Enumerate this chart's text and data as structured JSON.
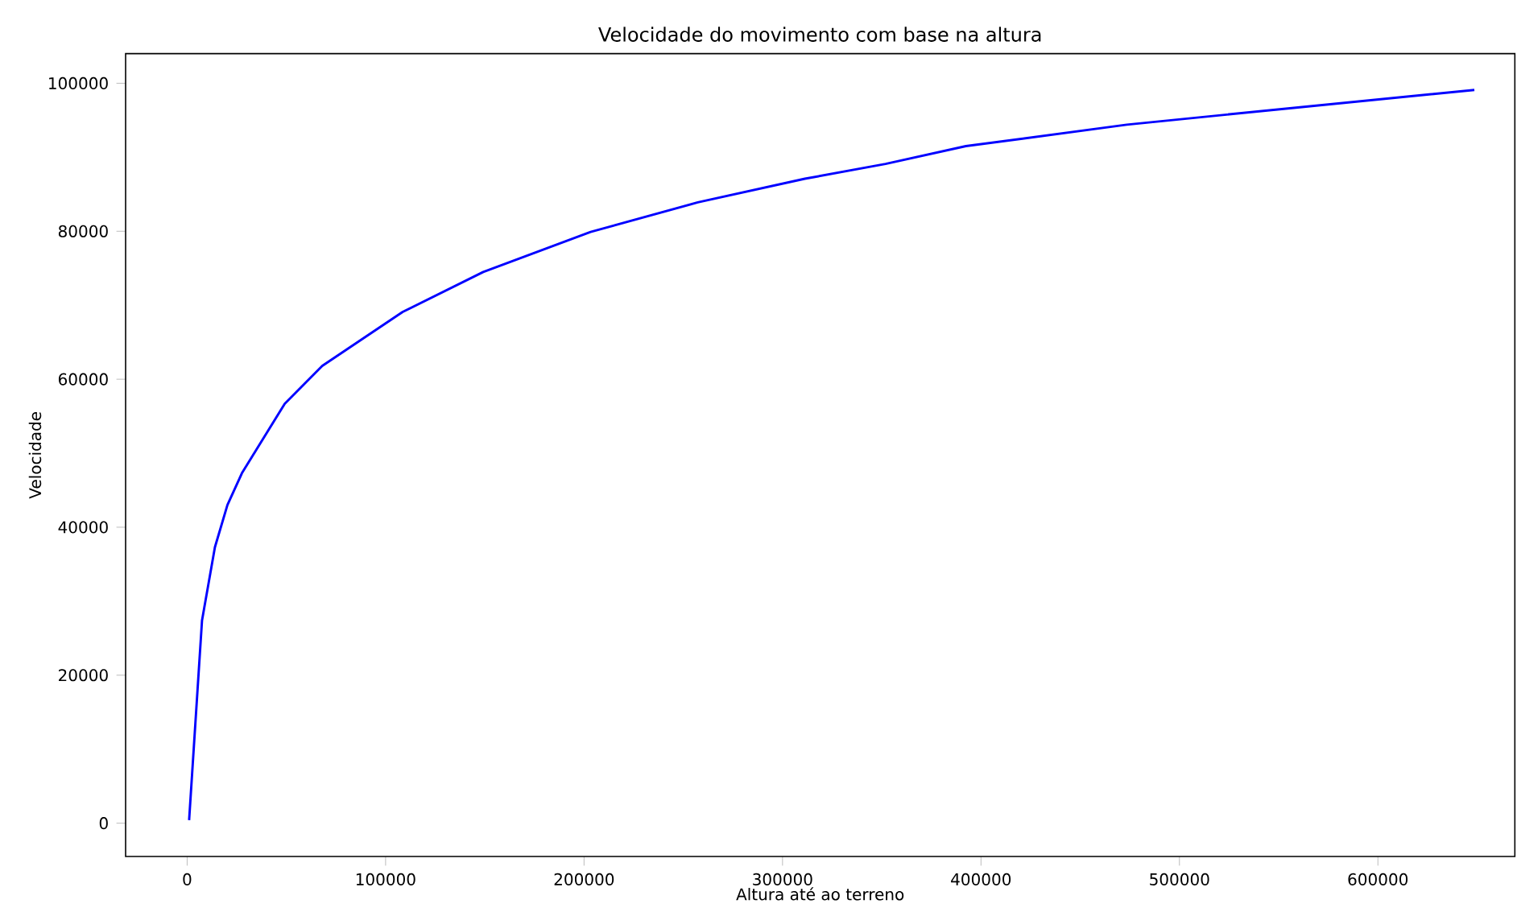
{
  "chart_data": {
    "type": "line",
    "title": "Velocidade do movimento com base na altura",
    "xlabel": "Altura até ao terreno",
    "ylabel": "Velocidade",
    "x": [
      1000,
      7500,
      14000,
      20300,
      27600,
      38400,
      49200,
      68100,
      108600,
      149200,
      203300,
      257300,
      311300,
      351900,
      392400,
      473500,
      554600,
      648600
    ],
    "series": [
      {
        "color": "#0000ff",
        "values": [
          400,
          27400,
          37300,
          43000,
          47300,
          52000,
          56700,
          61800,
          69100,
          74500,
          79900,
          83900,
          87100,
          89100,
          91500,
          94400,
          96600,
          99100
        ]
      }
    ],
    "xlim": [
      -31000,
      669000
    ],
    "ylim": [
      -4500,
      104000
    ],
    "xticks": [
      0,
      100000,
      200000,
      300000,
      400000,
      500000,
      600000
    ],
    "yticks": [
      0,
      20000,
      40000,
      60000,
      80000,
      100000
    ],
    "grid": false,
    "marker": "none",
    "line_style": "solid"
  }
}
